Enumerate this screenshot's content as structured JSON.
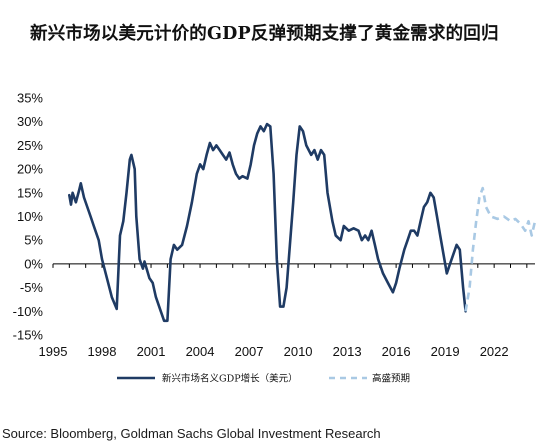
{
  "chart_data": {
    "type": "line",
    "title": "新兴市场以美元计价的GDP反弹预期支撑了黄金需求的回归",
    "xlabel": "",
    "ylabel": "",
    "x_ticks": [
      "1995",
      "1998",
      "2001",
      "2004",
      "2007",
      "2010",
      "2013",
      "2016",
      "2019",
      "2022"
    ],
    "y_ticks": [
      "35%",
      "30%",
      "25%",
      "20%",
      "15%",
      "10%",
      "5%",
      "0%",
      "-5%",
      "-10%",
      "-15%"
    ],
    "xlim": [
      1995,
      2024.5
    ],
    "ylim": [
      -15,
      35
    ],
    "grid": false,
    "legend_position": "bottom",
    "series": [
      {
        "name": "新兴市场名义GDP增长（美元）",
        "style": "solid",
        "color": "#1f3b64",
        "points": [
          [
            1996.0,
            14.5
          ],
          [
            1996.1,
            12.5
          ],
          [
            1996.2,
            15.0
          ],
          [
            1996.4,
            13.0
          ],
          [
            1996.6,
            15.5
          ],
          [
            1996.7,
            17.0
          ],
          [
            1996.9,
            14.0
          ],
          [
            1997.1,
            12.0
          ],
          [
            1997.3,
            10.0
          ],
          [
            1997.5,
            8.0
          ],
          [
            1997.8,
            5.0
          ],
          [
            1998.0,
            1.0
          ],
          [
            1998.3,
            -3.0
          ],
          [
            1998.6,
            -7.0
          ],
          [
            1998.9,
            -9.5
          ],
          [
            1999.1,
            6.0
          ],
          [
            1999.3,
            9.0
          ],
          [
            1999.5,
            15.0
          ],
          [
            1999.7,
            22.0
          ],
          [
            1999.8,
            23.0
          ],
          [
            2000.0,
            20.0
          ],
          [
            2000.1,
            10.0
          ],
          [
            2000.3,
            1.0
          ],
          [
            2000.5,
            -1.0
          ],
          [
            2000.6,
            0.5
          ],
          [
            2000.9,
            -3.0
          ],
          [
            2001.1,
            -4.0
          ],
          [
            2001.3,
            -7.0
          ],
          [
            2001.6,
            -10.0
          ],
          [
            2001.8,
            -12.0
          ],
          [
            2002.0,
            -12.0
          ],
          [
            2002.2,
            1.0
          ],
          [
            2002.4,
            4.0
          ],
          [
            2002.6,
            3.0
          ],
          [
            2002.9,
            4.0
          ],
          [
            2003.2,
            8.0
          ],
          [
            2003.5,
            13.0
          ],
          [
            2003.8,
            19.0
          ],
          [
            2004.0,
            21.0
          ],
          [
            2004.2,
            20.0
          ],
          [
            2004.4,
            23.0
          ],
          [
            2004.6,
            25.5
          ],
          [
            2004.8,
            24.0
          ],
          [
            2005.0,
            25.0
          ],
          [
            2005.2,
            24.0
          ],
          [
            2005.4,
            23.0
          ],
          [
            2005.6,
            22.0
          ],
          [
            2005.8,
            23.5
          ],
          [
            2006.0,
            21.0
          ],
          [
            2006.2,
            19.0
          ],
          [
            2006.4,
            18.0
          ],
          [
            2006.6,
            18.5
          ],
          [
            2006.9,
            18.0
          ],
          [
            2007.1,
            21.0
          ],
          [
            2007.3,
            25.0
          ],
          [
            2007.5,
            27.5
          ],
          [
            2007.7,
            29.0
          ],
          [
            2007.9,
            28.0
          ],
          [
            2008.1,
            29.5
          ],
          [
            2008.3,
            29.0
          ],
          [
            2008.5,
            19.0
          ],
          [
            2008.7,
            1.0
          ],
          [
            2008.9,
            -9.0
          ],
          [
            2009.1,
            -9.0
          ],
          [
            2009.3,
            -5.0
          ],
          [
            2009.5,
            4.0
          ],
          [
            2009.7,
            13.0
          ],
          [
            2009.9,
            23.0
          ],
          [
            2010.1,
            29.0
          ],
          [
            2010.3,
            28.0
          ],
          [
            2010.5,
            25.0
          ],
          [
            2010.8,
            23.0
          ],
          [
            2011.0,
            24.0
          ],
          [
            2011.2,
            22.0
          ],
          [
            2011.4,
            24.0
          ],
          [
            2011.6,
            23.0
          ],
          [
            2011.8,
            15.0
          ],
          [
            2012.1,
            9.0
          ],
          [
            2012.3,
            6.0
          ],
          [
            2012.6,
            5.0
          ],
          [
            2012.8,
            8.0
          ],
          [
            2013.1,
            7.0
          ],
          [
            2013.4,
            7.5
          ],
          [
            2013.7,
            7.0
          ],
          [
            2013.9,
            5.0
          ],
          [
            2014.1,
            6.0
          ],
          [
            2014.3,
            5.0
          ],
          [
            2014.5,
            7.0
          ],
          [
            2014.7,
            4.0
          ],
          [
            2014.9,
            1.0
          ],
          [
            2015.2,
            -2.0
          ],
          [
            2015.5,
            -4.0
          ],
          [
            2015.8,
            -6.0
          ],
          [
            2016.0,
            -4.0
          ],
          [
            2016.2,
            -1.0
          ],
          [
            2016.5,
            3.0
          ],
          [
            2016.7,
            5.0
          ],
          [
            2016.9,
            7.0
          ],
          [
            2017.1,
            7.0
          ],
          [
            2017.3,
            6.0
          ],
          [
            2017.5,
            9.0
          ],
          [
            2017.7,
            12.0
          ],
          [
            2017.9,
            13.0
          ],
          [
            2018.1,
            15.0
          ],
          [
            2018.3,
            14.0
          ],
          [
            2018.5,
            10.0
          ],
          [
            2018.7,
            6.0
          ],
          [
            2018.9,
            2.0
          ],
          [
            2019.1,
            -2.0
          ],
          [
            2019.3,
            0.0
          ],
          [
            2019.5,
            2.0
          ],
          [
            2019.7,
            4.0
          ],
          [
            2019.9,
            3.0
          ],
          [
            2020.1,
            -5.0
          ],
          [
            2020.25,
            -10.0
          ]
        ]
      },
      {
        "name": "高盛预期",
        "style": "dashed",
        "color": "#a9c9e4",
        "points": [
          [
            2020.25,
            -10.0
          ],
          [
            2020.5,
            -5.0
          ],
          [
            2020.7,
            3.0
          ],
          [
            2020.9,
            9.0
          ],
          [
            2021.1,
            14.0
          ],
          [
            2021.3,
            16.0
          ],
          [
            2021.5,
            12.0
          ],
          [
            2021.8,
            10.0
          ],
          [
            2022.2,
            9.5
          ],
          [
            2022.6,
            10.0
          ],
          [
            2023.0,
            9.0
          ],
          [
            2023.3,
            9.5
          ],
          [
            2023.6,
            8.5
          ],
          [
            2023.9,
            7.0
          ],
          [
            2024.1,
            9.0
          ],
          [
            2024.3,
            6.0
          ],
          [
            2024.5,
            9.0
          ]
        ]
      }
    ]
  },
  "source": "Source: Bloomberg, Goldman Sachs Global Investment Research"
}
